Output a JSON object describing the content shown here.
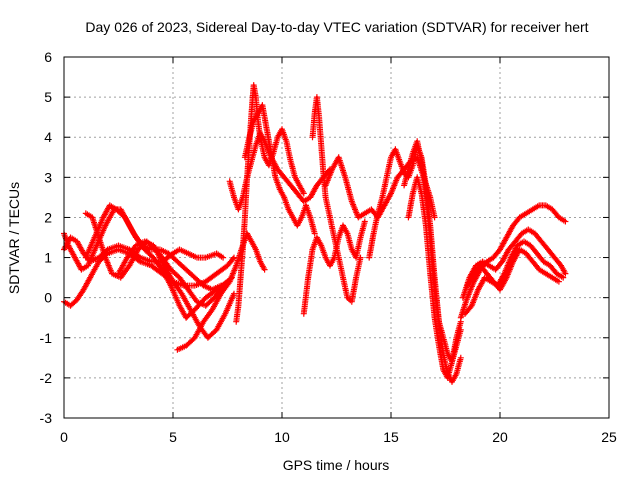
{
  "chart_data": {
    "type": "scatter",
    "title": "Day 026 of 2023, Sidereal Day-to-day VTEC variation (SDTVAR) for receiver hert",
    "xlabel": "GPS time / hours",
    "ylabel": "SDTVAR / TECUs",
    "xlim": [
      0,
      25
    ],
    "ylim": [
      -3,
      6
    ],
    "xticks": [
      0,
      5,
      10,
      15,
      20,
      25
    ],
    "yticks": [
      -3,
      -2,
      -1,
      0,
      1,
      2,
      3,
      4,
      5,
      6
    ],
    "grid": true,
    "marker": "+",
    "color": "#ff0000",
    "tracks": [
      [
        [
          0.0,
          -0.1
        ],
        [
          0.3,
          -0.2
        ],
        [
          0.6,
          -0.05
        ],
        [
          0.9,
          0.2
        ],
        [
          1.2,
          0.5
        ],
        [
          1.6,
          0.9
        ],
        [
          2.0,
          1.1
        ],
        [
          2.5,
          1.2
        ],
        [
          3.0,
          1.1
        ],
        [
          3.5,
          0.9
        ],
        [
          4.0,
          0.8
        ],
        [
          4.5,
          0.6
        ],
        [
          5.0,
          0.4
        ],
        [
          5.5,
          0.3
        ],
        [
          6.0,
          0.3
        ],
        [
          6.5,
          0.4
        ],
        [
          7.0,
          0.6
        ],
        [
          7.5,
          0.8
        ],
        [
          7.8,
          1.0
        ]
      ],
      [
        [
          0.0,
          1.2
        ],
        [
          0.3,
          1.5
        ],
        [
          0.6,
          1.4
        ],
        [
          0.9,
          1.1
        ],
        [
          1.2,
          0.9
        ],
        [
          1.6,
          1.0
        ],
        [
          2.0,
          1.2
        ],
        [
          2.5,
          1.3
        ],
        [
          3.0,
          1.2
        ],
        [
          3.5,
          1.0
        ],
        [
          4.0,
          0.9
        ],
        [
          4.5,
          0.9
        ],
        [
          5.0,
          1.1
        ],
        [
          5.3,
          1.2
        ],
        [
          5.7,
          1.1
        ],
        [
          6.1,
          1.0
        ],
        [
          6.5,
          1.0
        ],
        [
          7.0,
          1.1
        ],
        [
          7.3,
          1.0
        ]
      ],
      [
        [
          0.0,
          1.6
        ],
        [
          0.2,
          1.3
        ],
        [
          0.5,
          1.0
        ],
        [
          0.8,
          0.7
        ],
        [
          1.1,
          0.8
        ],
        [
          1.5,
          1.3
        ],
        [
          1.9,
          1.8
        ],
        [
          2.3,
          2.2
        ],
        [
          2.6,
          2.2
        ],
        [
          2.9,
          1.9
        ],
        [
          3.3,
          1.5
        ],
        [
          3.7,
          1.2
        ],
        [
          4.1,
          1.0
        ],
        [
          4.5,
          0.7
        ],
        [
          4.9,
          0.3
        ],
        [
          5.3,
          -0.2
        ],
        [
          5.6,
          -0.5
        ],
        [
          6.0,
          -0.3
        ],
        [
          6.5,
          0.0
        ],
        [
          7.0,
          0.2
        ],
        [
          7.5,
          0.4
        ]
      ],
      [
        [
          1.0,
          1.0
        ],
        [
          1.4,
          1.5
        ],
        [
          1.8,
          2.0
        ],
        [
          2.1,
          2.3
        ],
        [
          2.4,
          2.2
        ],
        [
          2.8,
          2.0
        ],
        [
          3.2,
          1.6
        ],
        [
          3.6,
          1.3
        ],
        [
          4.0,
          1.2
        ],
        [
          4.4,
          1.2
        ],
        [
          4.8,
          1.1
        ],
        [
          5.2,
          0.9
        ],
        [
          5.6,
          0.7
        ],
        [
          6.0,
          0.5
        ],
        [
          6.4,
          0.3
        ],
        [
          6.8,
          0.2
        ],
        [
          7.2,
          0.3
        ]
      ],
      [
        [
          1.0,
          2.1
        ],
        [
          1.3,
          2.0
        ],
        [
          1.6,
          1.5
        ],
        [
          1.9,
          1.0
        ],
        [
          2.2,
          0.6
        ],
        [
          2.6,
          0.5
        ],
        [
          3.0,
          0.8
        ],
        [
          3.4,
          1.2
        ],
        [
          3.8,
          1.4
        ],
        [
          4.2,
          1.2
        ],
        [
          4.6,
          0.8
        ],
        [
          5.0,
          0.4
        ],
        [
          5.4,
          0.1
        ],
        [
          5.8,
          -0.3
        ],
        [
          6.2,
          -0.7
        ],
        [
          6.6,
          -1.0
        ],
        [
          7.0,
          -0.8
        ],
        [
          7.4,
          -0.4
        ],
        [
          7.8,
          0.1
        ]
      ],
      [
        [
          2.5,
          0.6
        ],
        [
          2.9,
          1.0
        ],
        [
          3.3,
          1.3
        ],
        [
          3.7,
          1.4
        ],
        [
          4.1,
          1.3
        ],
        [
          4.5,
          1.0
        ],
        [
          4.9,
          0.7
        ],
        [
          5.3,
          0.5
        ],
        [
          5.7,
          0.2
        ],
        [
          6.1,
          -0.1
        ],
        [
          6.5,
          -0.2
        ],
        [
          6.9,
          0.0
        ],
        [
          7.3,
          0.3
        ],
        [
          7.7,
          0.5
        ]
      ],
      [
        [
          5.2,
          -1.3
        ],
        [
          5.6,
          -1.2
        ],
        [
          6.0,
          -1.0
        ],
        [
          6.4,
          -0.6
        ],
        [
          6.8,
          -0.3
        ],
        [
          7.2,
          0.1
        ],
        [
          7.6,
          0.4
        ],
        [
          7.9,
          0.8
        ],
        [
          8.2,
          1.3
        ],
        [
          8.4,
          1.6
        ],
        [
          8.6,
          1.4
        ],
        [
          8.8,
          1.2
        ],
        [
          9.0,
          0.9
        ],
        [
          9.2,
          0.7
        ]
      ],
      [
        [
          7.6,
          2.9
        ],
        [
          7.8,
          2.5
        ],
        [
          8.0,
          2.2
        ],
        [
          8.2,
          2.5
        ],
        [
          8.4,
          3.0
        ],
        [
          8.6,
          3.4
        ],
        [
          8.8,
          3.8
        ],
        [
          9.0,
          4.1
        ],
        [
          9.2,
          3.9
        ],
        [
          9.5,
          3.5
        ],
        [
          9.8,
          3.2
        ],
        [
          10.1,
          3.0
        ],
        [
          10.4,
          2.8
        ],
        [
          10.7,
          2.6
        ],
        [
          11.0,
          2.4
        ],
        [
          11.3,
          2.5
        ],
        [
          11.6,
          2.8
        ],
        [
          11.9,
          3.0
        ],
        [
          12.2,
          3.2
        ]
      ],
      [
        [
          7.9,
          -0.6
        ],
        [
          8.0,
          -0.2
        ],
        [
          8.1,
          0.5
        ],
        [
          8.2,
          1.2
        ],
        [
          8.3,
          2.0
        ],
        [
          8.4,
          3.0
        ],
        [
          8.5,
          3.8
        ],
        [
          8.6,
          4.6
        ],
        [
          8.7,
          5.3
        ],
        [
          8.8,
          5.0
        ],
        [
          8.9,
          4.4
        ],
        [
          9.0,
          4.0
        ],
        [
          9.2,
          3.5
        ],
        [
          9.4,
          3.3
        ],
        [
          9.6,
          3.6
        ],
        [
          9.8,
          4.0
        ],
        [
          10.0,
          4.2
        ],
        [
          10.2,
          3.9
        ],
        [
          10.4,
          3.4
        ],
        [
          10.6,
          3.0
        ],
        [
          10.8,
          2.8
        ],
        [
          11.0,
          2.6
        ]
      ],
      [
        [
          8.3,
          3.5
        ],
        [
          8.5,
          4.0
        ],
        [
          8.7,
          4.4
        ],
        [
          8.9,
          4.6
        ],
        [
          9.1,
          4.8
        ],
        [
          9.3,
          4.2
        ],
        [
          9.5,
          3.6
        ],
        [
          9.7,
          3.0
        ],
        [
          9.9,
          2.7
        ],
        [
          10.1,
          2.5
        ],
        [
          10.3,
          2.2
        ],
        [
          10.5,
          2.0
        ],
        [
          10.7,
          1.8
        ],
        [
          10.9,
          2.0
        ],
        [
          11.1,
          2.3
        ],
        [
          11.3,
          2.0
        ],
        [
          11.5,
          1.6
        ]
      ],
      [
        [
          11.0,
          -0.4
        ],
        [
          11.2,
          0.5
        ],
        [
          11.4,
          1.2
        ],
        [
          11.6,
          1.5
        ],
        [
          11.8,
          1.3
        ],
        [
          12.0,
          1.0
        ],
        [
          12.2,
          0.8
        ],
        [
          12.4,
          1.0
        ],
        [
          12.6,
          1.5
        ],
        [
          12.8,
          1.8
        ],
        [
          13.0,
          1.6
        ],
        [
          13.2,
          1.2
        ],
        [
          13.4,
          1.0
        ],
        [
          13.6,
          1.5
        ],
        [
          13.8,
          1.9
        ]
      ],
      [
        [
          11.4,
          4.0
        ],
        [
          11.5,
          4.6
        ],
        [
          11.6,
          5.0
        ],
        [
          11.7,
          4.5
        ],
        [
          11.8,
          3.8
        ],
        [
          11.9,
          3.1
        ],
        [
          12.0,
          2.5
        ],
        [
          12.2,
          2.0
        ],
        [
          12.4,
          1.5
        ],
        [
          12.6,
          1.0
        ],
        [
          12.8,
          0.5
        ],
        [
          13.0,
          0.0
        ],
        [
          13.2,
          -0.1
        ],
        [
          13.4,
          0.5
        ],
        [
          13.6,
          1.0
        ]
      ],
      [
        [
          12.0,
          2.8
        ],
        [
          12.3,
          3.2
        ],
        [
          12.6,
          3.5
        ],
        [
          12.9,
          3.0
        ],
        [
          13.2,
          2.4
        ],
        [
          13.5,
          2.0
        ],
        [
          13.8,
          2.1
        ],
        [
          14.1,
          2.2
        ],
        [
          14.4,
          2.0
        ],
        [
          14.7,
          2.3
        ],
        [
          15.0,
          2.6
        ],
        [
          15.3,
          3.0
        ],
        [
          15.6,
          3.2
        ],
        [
          15.9,
          3.4
        ],
        [
          16.2,
          3.5
        ],
        [
          16.5,
          3.0
        ],
        [
          16.8,
          2.5
        ],
        [
          17.0,
          2.0
        ]
      ],
      [
        [
          14.0,
          1.0
        ],
        [
          14.2,
          1.6
        ],
        [
          14.4,
          2.1
        ],
        [
          14.6,
          2.5
        ],
        [
          14.8,
          3.0
        ],
        [
          15.0,
          3.5
        ],
        [
          15.2,
          3.7
        ],
        [
          15.4,
          3.4
        ],
        [
          15.6,
          3.1
        ],
        [
          15.8,
          3.0
        ],
        [
          16.0,
          3.3
        ],
        [
          16.2,
          3.8
        ],
        [
          16.4,
          3.5
        ],
        [
          16.6,
          2.8
        ],
        [
          16.8,
          1.8
        ],
        [
          17.0,
          0.5
        ],
        [
          17.2,
          -0.6
        ],
        [
          17.4,
          -1.4
        ],
        [
          17.6,
          -1.9
        ],
        [
          17.8,
          -2.1
        ],
        [
          18.0,
          -1.9
        ],
        [
          18.2,
          -1.5
        ]
      ],
      [
        [
          15.6,
          2.8
        ],
        [
          15.8,
          3.2
        ],
        [
          16.0,
          3.6
        ],
        [
          16.2,
          3.9
        ],
        [
          16.4,
          3.4
        ],
        [
          16.6,
          2.6
        ],
        [
          16.8,
          1.4
        ],
        [
          17.0,
          0.2
        ],
        [
          17.2,
          -0.6
        ],
        [
          17.4,
          -1.0
        ],
        [
          17.6,
          -1.4
        ],
        [
          17.8,
          -1.6
        ],
        [
          18.0,
          -1.2
        ],
        [
          18.2,
          -0.8
        ]
      ],
      [
        [
          15.8,
          2.0
        ],
        [
          16.0,
          2.6
        ],
        [
          16.2,
          3.0
        ],
        [
          16.4,
          2.6
        ],
        [
          16.6,
          1.8
        ],
        [
          16.8,
          0.6
        ],
        [
          17.0,
          -0.5
        ],
        [
          17.2,
          -1.2
        ],
        [
          17.4,
          -1.8
        ],
        [
          17.6,
          -2.0
        ],
        [
          17.8,
          -1.6
        ],
        [
          18.0,
          -1.0
        ],
        [
          18.2,
          -0.6
        ]
      ],
      [
        [
          18.2,
          -0.5
        ],
        [
          18.5,
          0.0
        ],
        [
          18.8,
          0.4
        ],
        [
          19.1,
          0.7
        ],
        [
          19.4,
          0.9
        ],
        [
          19.7,
          1.0
        ],
        [
          20.0,
          1.2
        ],
        [
          20.3,
          1.5
        ],
        [
          20.6,
          1.8
        ],
        [
          20.9,
          2.0
        ],
        [
          21.2,
          2.1
        ],
        [
          21.5,
          2.2
        ],
        [
          21.8,
          2.3
        ],
        [
          22.1,
          2.3
        ],
        [
          22.4,
          2.2
        ],
        [
          22.7,
          2.0
        ],
        [
          23.0,
          1.9
        ]
      ],
      [
        [
          18.3,
          0.0
        ],
        [
          18.6,
          0.5
        ],
        [
          18.9,
          0.8
        ],
        [
          19.2,
          0.9
        ],
        [
          19.5,
          0.8
        ],
        [
          19.8,
          0.7
        ],
        [
          20.1,
          0.9
        ],
        [
          20.4,
          1.2
        ],
        [
          20.7,
          1.4
        ],
        [
          21.0,
          1.6
        ],
        [
          21.3,
          1.7
        ],
        [
          21.6,
          1.6
        ],
        [
          21.9,
          1.4
        ],
        [
          22.2,
          1.2
        ],
        [
          22.5,
          1.0
        ],
        [
          22.8,
          0.8
        ],
        [
          23.0,
          0.6
        ]
      ],
      [
        [
          18.4,
          -0.4
        ],
        [
          18.7,
          -0.2
        ],
        [
          19.0,
          0.2
        ],
        [
          19.3,
          0.5
        ],
        [
          19.6,
          0.4
        ],
        [
          19.9,
          0.3
        ],
        [
          20.2,
          0.6
        ],
        [
          20.5,
          1.0
        ],
        [
          20.8,
          1.3
        ],
        [
          21.1,
          1.4
        ],
        [
          21.4,
          1.3
        ],
        [
          21.7,
          1.1
        ],
        [
          22.0,
          0.9
        ],
        [
          22.3,
          0.8
        ],
        [
          22.6,
          0.6
        ],
        [
          22.9,
          0.5
        ]
      ],
      [
        [
          18.5,
          0.3
        ],
        [
          18.8,
          0.6
        ],
        [
          19.1,
          0.8
        ],
        [
          19.4,
          0.6
        ],
        [
          19.7,
          0.4
        ],
        [
          20.0,
          0.2
        ],
        [
          20.3,
          0.5
        ],
        [
          20.6,
          0.9
        ],
        [
          20.9,
          1.2
        ],
        [
          21.2,
          1.1
        ],
        [
          21.5,
          0.9
        ],
        [
          21.8,
          0.7
        ],
        [
          22.1,
          0.6
        ],
        [
          22.4,
          0.5
        ],
        [
          22.7,
          0.4
        ]
      ]
    ]
  }
}
